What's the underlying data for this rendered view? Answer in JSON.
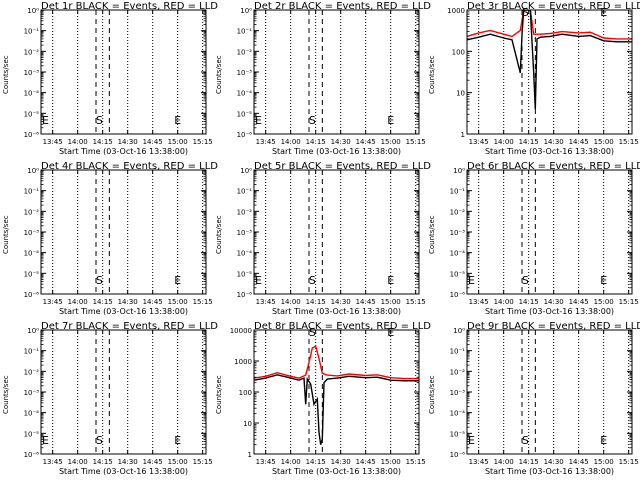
{
  "chart_data": [
    {
      "id": "1r",
      "type": "line",
      "title": "Det 1r BLACK = Events, RED = LLD",
      "xlabel": "Start Time (03-Oct-16 13:38:00)",
      "ylabel": "Counts/sec",
      "x_ticks": [
        "13:45",
        "14:00",
        "14:15",
        "14:30",
        "14:45",
        "15:00",
        "15:15"
      ],
      "y_scale": "log",
      "y_tick_labels": [
        "10⁰",
        "10⁻¹",
        "10⁻²",
        "10⁻³",
        "10⁻⁴",
        "10⁻⁵",
        "10⁻⁶"
      ],
      "ylim": [
        1e-06,
        1
      ],
      "markers": [
        {
          "label": "E",
          "x": "13:38"
        },
        {
          "label": "S",
          "x": "14:13"
        },
        {
          "label": "E",
          "x": "15:00"
        }
      ],
      "series": []
    },
    {
      "id": "2r",
      "type": "line",
      "title": "Det 2r BLACK = Events, RED = LLD",
      "xlabel": "Start Time (03-Oct-16 13:38:00)",
      "ylabel": "Counts/sec",
      "x_ticks": [
        "13:45",
        "14:00",
        "14:15",
        "14:30",
        "14:45",
        "15:00",
        "15:15"
      ],
      "y_scale": "log",
      "y_tick_labels": [
        "10⁰",
        "10⁻¹",
        "10⁻²",
        "10⁻³",
        "10⁻⁴",
        "10⁻⁵",
        "10⁻⁶"
      ],
      "ylim": [
        1e-06,
        1
      ],
      "markers": [
        {
          "label": "E",
          "x": "13:38"
        },
        {
          "label": "S",
          "x": "14:13"
        },
        {
          "label": "E",
          "x": "15:00"
        }
      ],
      "series": []
    },
    {
      "id": "3r",
      "type": "line",
      "title": "Det 3r BLACK = Events, RED = LLD",
      "xlabel": "Start Time (03-Oct-16 13:38:00)",
      "ylabel": "Counts/sec",
      "x_ticks": [
        "13:45",
        "14:00",
        "14:15",
        "14:30",
        "14:45",
        "15:00",
        "15:15"
      ],
      "y_scale": "log",
      "y_tick_labels": [
        "1000",
        "100",
        "10",
        "1"
      ],
      "ylim": [
        1,
        1000
      ],
      "markers": [
        {
          "label": "S",
          "x": "14:13"
        },
        {
          "label": "E",
          "x": "15:00"
        }
      ],
      "series": [
        {
          "color": "#ff0000",
          "x": [
            "13:38",
            "13:45",
            "13:52",
            "14:00",
            "14:05",
            "14:10",
            "14:12",
            "14:14",
            "14:16",
            "14:18",
            "14:22",
            "14:28",
            "14:35",
            "14:45",
            "14:52",
            "15:00",
            "15:08",
            "15:17"
          ],
          "values": [
            230,
            280,
            320,
            260,
            230,
            320,
            1000,
            1000,
            1000,
            260,
            260,
            270,
            300,
            280,
            290,
            210,
            200,
            200
          ]
        },
        {
          "color": "#000000",
          "x": [
            "13:38",
            "13:45",
            "13:52",
            "14:00",
            "14:05",
            "14:10",
            "14:11",
            "14:12",
            "14:14",
            "14:16",
            "14:18",
            "14:19",
            "14:20",
            "14:22",
            "14:28",
            "14:35",
            "14:45",
            "14:52",
            "15:00",
            "15:08",
            "15:17"
          ],
          "values": [
            190,
            220,
            260,
            210,
            190,
            30,
            250,
            1000,
            1000,
            1000,
            30,
            4,
            200,
            220,
            230,
            260,
            230,
            240,
            180,
            170,
            170
          ]
        }
      ]
    },
    {
      "id": "4r",
      "type": "line",
      "title": "Det 4r BLACK = Events, RED = LLD",
      "xlabel": "Start Time (03-Oct-16 13:38:00)",
      "ylabel": "Counts/sec",
      "x_ticks": [
        "13:45",
        "14:00",
        "14:15",
        "14:30",
        "14:45",
        "15:00",
        "15:15"
      ],
      "y_scale": "log",
      "y_tick_labels": [
        "10⁰",
        "10⁻¹",
        "10⁻²",
        "10⁻³",
        "10⁻⁴",
        "10⁻⁵",
        "10⁻⁶"
      ],
      "ylim": [
        1e-06,
        1
      ],
      "markers": [
        {
          "label": "S",
          "x": "14:13"
        },
        {
          "label": "E",
          "x": "15:00"
        }
      ],
      "series": []
    },
    {
      "id": "5r",
      "type": "line",
      "title": "Det 5r BLACK = Events, RED = LLD",
      "xlabel": "Start Time (03-Oct-16 13:38:00)",
      "ylabel": "Counts/sec",
      "x_ticks": [
        "13:45",
        "14:00",
        "14:15",
        "14:30",
        "14:45",
        "15:00",
        "15:15"
      ],
      "y_scale": "log",
      "y_tick_labels": [
        "10⁰",
        "10⁻¹",
        "10⁻²",
        "10⁻³",
        "10⁻⁴",
        "10⁻⁵",
        "10⁻⁶"
      ],
      "ylim": [
        1e-06,
        1
      ],
      "markers": [
        {
          "label": "E",
          "x": "13:38"
        },
        {
          "label": "S",
          "x": "14:13"
        },
        {
          "label": "E",
          "x": "15:00"
        }
      ],
      "series": []
    },
    {
      "id": "6r",
      "type": "line",
      "title": "Det 6r BLACK = Events, RED = LLD",
      "xlabel": "Start Time (03-Oct-16 13:38:00)",
      "ylabel": "Counts/sec",
      "x_ticks": [
        "13:45",
        "14:00",
        "14:15",
        "14:30",
        "14:45",
        "15:00",
        "15:15"
      ],
      "y_scale": "log",
      "y_tick_labels": [
        "10⁰",
        "10⁻¹",
        "10⁻²",
        "10⁻³",
        "10⁻⁴",
        "10⁻⁵",
        "10⁻⁶"
      ],
      "ylim": [
        1e-06,
        1
      ],
      "markers": [
        {
          "label": "E",
          "x": "13:38"
        },
        {
          "label": "S",
          "x": "14:13"
        },
        {
          "label": "E",
          "x": "15:00"
        }
      ],
      "series": []
    },
    {
      "id": "7r",
      "type": "line",
      "title": "Det 7r BLACK = Events, RED = LLD",
      "xlabel": "Start Time (03-Oct-16 13:38:00)",
      "ylabel": "Counts/sec",
      "x_ticks": [
        "13:45",
        "14:00",
        "14:15",
        "14:30",
        "14:45",
        "15:00",
        "15:15"
      ],
      "y_scale": "log",
      "y_tick_labels": [
        "10⁰",
        "10⁻¹",
        "10⁻²",
        "10⁻³",
        "10⁻⁴",
        "10⁻⁵",
        "10⁻⁶"
      ],
      "ylim": [
        1e-06,
        1
      ],
      "markers": [
        {
          "label": "E",
          "x": "13:38"
        },
        {
          "label": "S",
          "x": "14:13"
        },
        {
          "label": "E",
          "x": "15:00"
        }
      ],
      "series": []
    },
    {
      "id": "8r",
      "type": "line",
      "title": "Det 8r BLACK = Events, RED = LLD",
      "xlabel": "Start Time (03-Oct-16 13:38:00)",
      "ylabel": "Counts/sec",
      "x_ticks": [
        "13:45",
        "14:00",
        "14:15",
        "14:30",
        "14:45",
        "15:00",
        "15:15"
      ],
      "y_scale": "log",
      "y_tick_labels": [
        "10000",
        "1000",
        "100",
        "10",
        "1"
      ],
      "ylim": [
        1,
        10000
      ],
      "markers": [
        {
          "label": "S",
          "x": "14:13"
        },
        {
          "label": "E",
          "x": "15:00"
        }
      ],
      "series": [
        {
          "color": "#ff0000",
          "x": [
            "13:38",
            "13:45",
            "13:52",
            "14:00",
            "14:05",
            "14:09",
            "14:11",
            "14:13",
            "14:15",
            "14:17",
            "14:19",
            "14:22",
            "14:28",
            "14:35",
            "14:45",
            "14:52",
            "15:00",
            "15:08",
            "15:17"
          ],
          "values": [
            280,
            320,
            420,
            320,
            280,
            350,
            900,
            2600,
            3000,
            1200,
            400,
            350,
            330,
            380,
            340,
            360,
            290,
            270,
            270
          ]
        },
        {
          "color": "#000000",
          "x": [
            "13:38",
            "13:45",
            "13:52",
            "14:00",
            "14:05",
            "14:08",
            "14:09",
            "14:10",
            "14:12",
            "14:14",
            "14:16",
            "14:17",
            "14:18",
            "14:19",
            "14:20",
            "14:22",
            "14:28",
            "14:35",
            "14:45",
            "14:52",
            "15:00",
            "15:08",
            "15:17"
          ],
          "values": [
            240,
            280,
            360,
            280,
            240,
            280,
            40,
            260,
            180,
            40,
            60,
            5,
            2,
            3,
            200,
            260,
            280,
            320,
            290,
            300,
            240,
            230,
            230
          ]
        }
      ]
    },
    {
      "id": "9r",
      "type": "line",
      "title": "Det 9r BLACK = Events, RED = LLD",
      "xlabel": "Start Time (03-Oct-16 13:38:00)",
      "ylabel": "Counts/sec",
      "x_ticks": [
        "13:45",
        "14:00",
        "14:15",
        "14:30",
        "14:45",
        "15:00",
        "15:15"
      ],
      "y_scale": "log",
      "y_tick_labels": [
        "10⁰",
        "10⁻¹",
        "10⁻²",
        "10⁻³",
        "10⁻⁴",
        "10⁻⁵",
        "10⁻⁶"
      ],
      "ylim": [
        1e-06,
        1
      ],
      "markers": [
        {
          "label": "E",
          "x": "13:38"
        },
        {
          "label": "S",
          "x": "14:13"
        },
        {
          "label": "E",
          "x": "15:00"
        }
      ],
      "series": []
    }
  ]
}
